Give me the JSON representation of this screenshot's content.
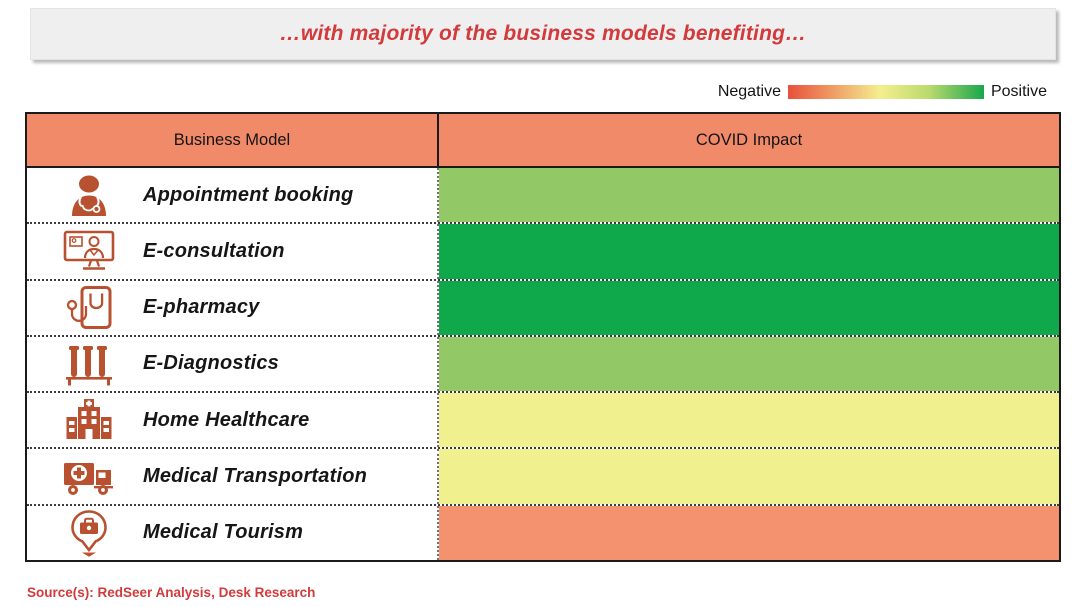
{
  "title": {
    "text": "…with majority of the business models benefiting…"
  },
  "legend": {
    "negative_label": "Negative",
    "positive_label": "Positive",
    "gradient": [
      "#e8503c",
      "#f5ee8f",
      "#bada6e",
      "#18a74c"
    ]
  },
  "table": {
    "columns": [
      "Business Model",
      "COVID Impact"
    ],
    "rows": [
      {
        "label": "Appointment booking",
        "icon": "doctor-icon",
        "impact_color": "#92c966",
        "impact_level": "positive"
      },
      {
        "label": "E-consultation",
        "icon": "video-consultation-icon",
        "impact_color": "#0fa84b",
        "impact_level": "strongly-positive"
      },
      {
        "label": "E-pharmacy",
        "icon": "tablet-stethoscope-icon",
        "impact_color": "#0fa84b",
        "impact_level": "strongly-positive"
      },
      {
        "label": "E-Diagnostics",
        "icon": "test-tubes-icon",
        "impact_color": "#92c966",
        "impact_level": "positive"
      },
      {
        "label": "Home Healthcare",
        "icon": "hospital-building-icon",
        "impact_color": "#f1f08e",
        "impact_level": "neutral"
      },
      {
        "label": "Medical Transportation",
        "icon": "ambulance-icon",
        "impact_color": "#f1f08e",
        "impact_level": "neutral"
      },
      {
        "label": "Medical Tourism",
        "icon": "medical-location-pin-icon",
        "impact_color": "#f4916f",
        "impact_level": "negative"
      }
    ]
  },
  "source": {
    "text": "Source(s): RedSeer Analysis, Desk Research"
  },
  "colors": {
    "header_bg": "#f18a69",
    "title_red": "#d23a3c",
    "icon_color": "#b8512f",
    "banner_bg": "#efefef",
    "border_dark": "#1b1b1b"
  },
  "chart_data": {
    "type": "table",
    "title": "…with majority of the business models benefiting…",
    "columns": [
      "Business Model",
      "COVID Impact"
    ],
    "rows": [
      {
        "business_model": "Appointment booking",
        "covid_impact": "positive"
      },
      {
        "business_model": "E-consultation",
        "covid_impact": "strongly-positive"
      },
      {
        "business_model": "E-pharmacy",
        "covid_impact": "strongly-positive"
      },
      {
        "business_model": "E-Diagnostics",
        "covid_impact": "positive"
      },
      {
        "business_model": "Home Healthcare",
        "covid_impact": "neutral"
      },
      {
        "business_model": "Medical Transportation",
        "covid_impact": "neutral"
      },
      {
        "business_model": "Medical Tourism",
        "covid_impact": "negative"
      }
    ],
    "color_scale": {
      "min_label": "Negative",
      "max_label": "Positive",
      "colors": [
        "#e8503c",
        "#f5ee8f",
        "#18a74c"
      ]
    },
    "legend_position": "top-right",
    "source": "Source(s): RedSeer Analysis, Desk Research"
  }
}
